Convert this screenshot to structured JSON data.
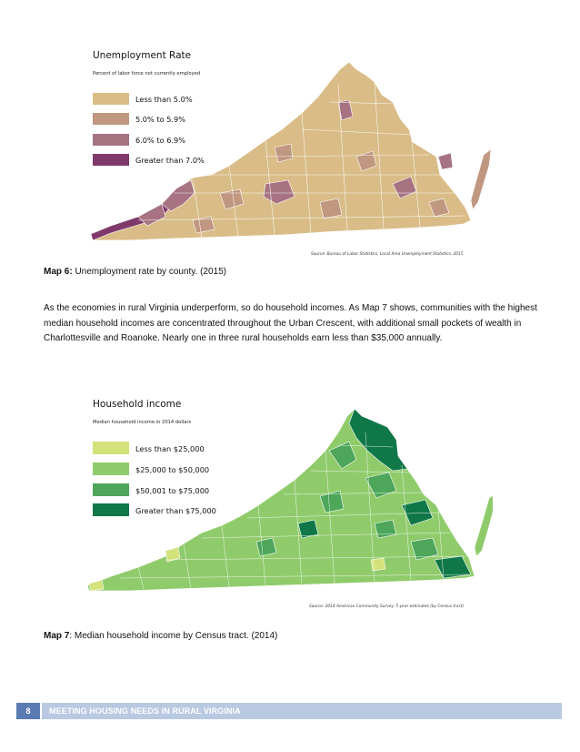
{
  "map1": {
    "title": "Unemployment Rate",
    "subtitle": "Percent of labor force not currently employed",
    "legend": [
      {
        "label": "Less than 5.0%",
        "color": "#d9bc87"
      },
      {
        "label": "5.0% to 5.9%",
        "color": "#c09780"
      },
      {
        "label": "6.0% to 6.9%",
        "color": "#a77383"
      },
      {
        "label": "Greater than 7.0%",
        "color": "#7f3a6b"
      }
    ],
    "source": "Source: Bureau of Labor Statistics, Local Area Unemployment Statistics, 2015"
  },
  "caption1": {
    "label": "Map 6:",
    "text": " Unemployment rate by county. (2015)"
  },
  "paragraph": "As the economies in rural Virginia underperform, so do household incomes. As Map 7 shows, communities with the highest median household incomes are concentrated throughout the Urban Crescent, with additional small pockets of wealth in Charlottesville and Roanoke. Nearly one in three rural households earn less than $35,000 annually.",
  "map2": {
    "title": "Household income",
    "subtitle": "Median household income in 2014 dollars",
    "legend": [
      {
        "label": "Less than $25,000",
        "color": "#d4e27c"
      },
      {
        "label": "$25,000 to $50,000",
        "color": "#8fcb6b"
      },
      {
        "label": "$50,001 to $75,000",
        "color": "#4ea65a"
      },
      {
        "label": "Greater than $75,000",
        "color": "#0f7748"
      }
    ],
    "source": "Source: 2014 American Community Survey, 5-year estimates (by Census tract)"
  },
  "caption2": {
    "label": "Map 7",
    "text": ": Median household income by Census tract. (2014)"
  },
  "footer": {
    "page_number": "8",
    "title": "MEETING HOUSING NEEDS IN RURAL VIRGINIA"
  }
}
